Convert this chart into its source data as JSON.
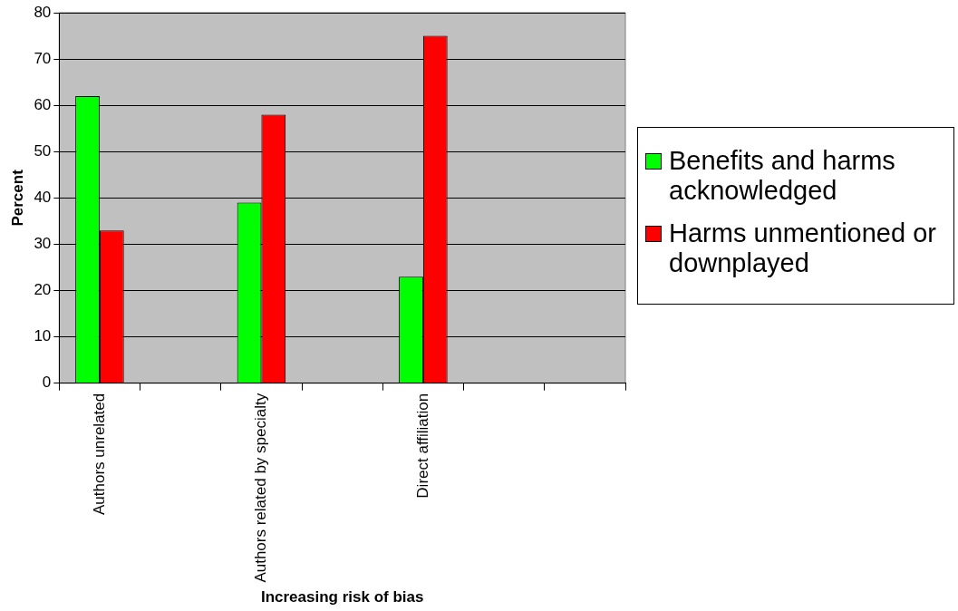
{
  "chart_data": {
    "type": "bar",
    "xlabel": "Increasing risk of bias",
    "ylabel": "Percent",
    "categories": [
      "Authors unrelated",
      null,
      "Authors related by specialty",
      null,
      "Direct affiliation",
      null,
      null
    ],
    "series": [
      {
        "name": "Benefits and harms acknowledged",
        "color": "#00ff00",
        "values": [
          62,
          null,
          39,
          null,
          23,
          null,
          null
        ]
      },
      {
        "name": "Harms unmentioned or downplayed",
        "color": "#ff0000",
        "values": [
          33,
          null,
          58,
          null,
          75,
          null,
          null
        ]
      }
    ],
    "ylim": [
      0,
      80
    ],
    "yticks": [
      0,
      10,
      20,
      30,
      40,
      50,
      60,
      70,
      80
    ],
    "grid": "y",
    "legend": "right"
  }
}
